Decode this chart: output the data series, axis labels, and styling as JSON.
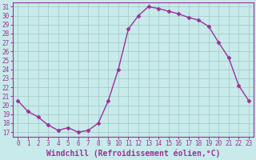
{
  "x": [
    0,
    1,
    2,
    3,
    4,
    5,
    6,
    7,
    8,
    9,
    10,
    11,
    12,
    13,
    14,
    15,
    16,
    17,
    18,
    19,
    20,
    21,
    22,
    23
  ],
  "y": [
    20.5,
    19.3,
    18.7,
    17.8,
    17.2,
    17.5,
    17.0,
    17.2,
    18.0,
    20.5,
    24.0,
    28.5,
    30.0,
    31.0,
    30.8,
    30.5,
    30.2,
    29.8,
    29.5,
    28.8,
    27.0,
    25.3,
    22.2,
    20.5
  ],
  "line_color": "#993399",
  "marker": "D",
  "marker_size": 2.5,
  "line_width": 1.0,
  "bg_color": "#c8eaea",
  "grid_color": "#a0c8c8",
  "xlabel": "Windchill (Refroidissement éolien,°C)",
  "xlabel_color": "#993399",
  "tick_color": "#993399",
  "axis_color": "#993399",
  "ylim": [
    16.5,
    31.5
  ],
  "xlim": [
    -0.5,
    23.5
  ],
  "yticks": [
    17,
    18,
    19,
    20,
    21,
    22,
    23,
    24,
    25,
    26,
    27,
    28,
    29,
    30,
    31
  ],
  "xticks": [
    0,
    1,
    2,
    3,
    4,
    5,
    6,
    7,
    8,
    9,
    10,
    11,
    12,
    13,
    14,
    15,
    16,
    17,
    18,
    19,
    20,
    21,
    22,
    23
  ],
  "tick_fontsize": 5.5,
  "xlabel_fontsize": 7.0
}
